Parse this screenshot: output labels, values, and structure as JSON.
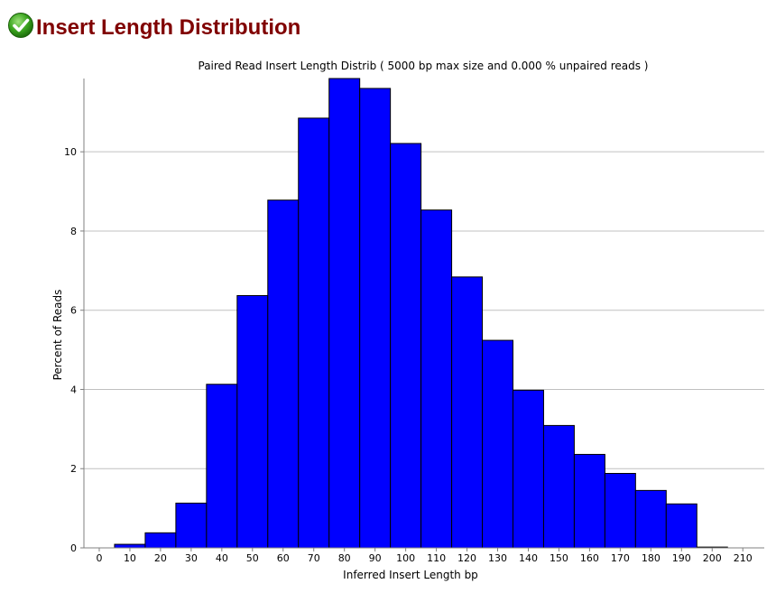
{
  "page": {
    "title": "Insert Length Distribution",
    "status_icon": "check-icon"
  },
  "chart_data": {
    "type": "bar",
    "title": "Paired Read Insert Length Distrib ( 5000 bp max size and 0.000 % unpaired reads )",
    "xlabel": "Inferred Insert Length bp",
    "ylabel": "Percent of Reads",
    "bar_color": "#0000ff",
    "grid": true,
    "xlim": [
      -5,
      217
    ],
    "ylim": [
      0,
      11.85
    ],
    "x_ticks": [
      0,
      10,
      20,
      30,
      40,
      50,
      60,
      70,
      80,
      90,
      100,
      110,
      120,
      130,
      140,
      150,
      160,
      170,
      180,
      190,
      200,
      210
    ],
    "y_ticks": [
      0,
      2,
      4,
      6,
      8,
      10
    ],
    "bin_width": 10,
    "categories": [
      10,
      20,
      30,
      40,
      50,
      60,
      70,
      80,
      90,
      100,
      110,
      120,
      130,
      140,
      150,
      160,
      170,
      180,
      190,
      200
    ],
    "values": [
      0.09,
      0.38,
      1.13,
      4.13,
      6.37,
      8.78,
      10.85,
      11.85,
      11.6,
      10.21,
      8.53,
      6.84,
      5.24,
      3.98,
      3.09,
      2.36,
      1.88,
      1.45,
      1.11,
      0.02
    ]
  }
}
